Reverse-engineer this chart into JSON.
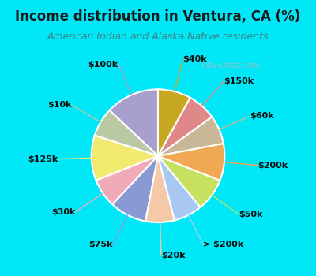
{
  "title": "Income distribution in Ventura, CA (%)",
  "subtitle": "American Indian and Alaska Native residents",
  "watermark": "City-Data.com",
  "labels": [
    "$100k",
    "$10k",
    "$125k",
    "$30k",
    "$75k",
    "$20k",
    "> $200k",
    "$50k",
    "$200k",
    "$60k",
    "$150k",
    "$40k"
  ],
  "sizes": [
    13,
    7,
    11,
    7,
    9,
    7,
    7,
    8,
    9,
    7,
    7,
    8
  ],
  "colors": [
    "#a99fcc",
    "#b8c9a4",
    "#f2ea6e",
    "#f0aab8",
    "#8899d4",
    "#f5c8a8",
    "#a8c8f2",
    "#c8e060",
    "#f0a855",
    "#c8b898",
    "#e08888",
    "#c8a820"
  ],
  "bg_cyan": "#00e8f8",
  "bg_chart": "#e0f2e0",
  "title_color": "#1a1a1a",
  "subtitle_color": "#408080",
  "label_fontsize": 8.0,
  "startangle": 90,
  "title_fontsize": 12,
  "subtitle_fontsize": 9
}
